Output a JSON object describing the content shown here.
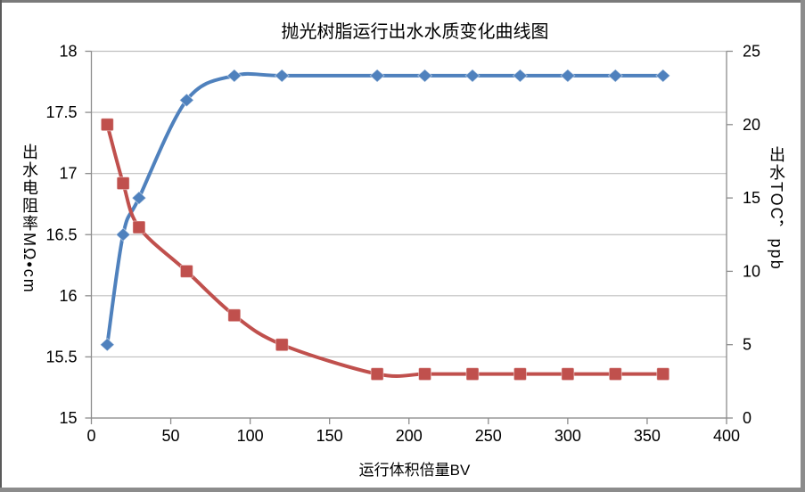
{
  "chart_data": {
    "type": "line",
    "title": "抛光树脂运行出水水质变化曲线图",
    "x": [
      10,
      20,
      30,
      60,
      90,
      120,
      180,
      210,
      240,
      270,
      300,
      330,
      360
    ],
    "series": [
      {
        "name": "出水电阻率",
        "axis": "left",
        "color": "#4F81BD",
        "marker": "diamond",
        "values": [
          15.6,
          16.5,
          16.8,
          17.6,
          17.8,
          17.8,
          17.8,
          17.8,
          17.8,
          17.8,
          17.8,
          17.8,
          17.8
        ]
      },
      {
        "name": "出水TOC",
        "axis": "right",
        "color": "#C0504D",
        "marker": "square",
        "values": [
          20,
          16,
          13,
          10,
          7,
          5,
          3,
          3,
          3,
          3,
          3,
          3,
          3
        ]
      }
    ],
    "x_axis": {
      "label": "运行体积倍量BV",
      "min": 0,
      "max": 400,
      "ticks": [
        0,
        50,
        100,
        150,
        200,
        250,
        300,
        350,
        400
      ],
      "tick_labels": [
        "0",
        "50",
        "100",
        "150",
        "200",
        "250",
        "300",
        "350",
        "400"
      ]
    },
    "left_axis": {
      "label": "出水电阻率MΩ•cm",
      "min": 15,
      "max": 18,
      "ticks": [
        15,
        15.5,
        16,
        16.5,
        17,
        17.5,
        18
      ],
      "tick_labels": [
        "15",
        "15.5",
        "16",
        "16.5",
        "17",
        "17.5",
        "18"
      ]
    },
    "right_axis": {
      "label": "出水TOC，ppb",
      "min": 0,
      "max": 25,
      "ticks": [
        0,
        5,
        10,
        15,
        20,
        25
      ],
      "tick_labels": [
        "0",
        "5",
        "10",
        "15",
        "20",
        "25"
      ]
    },
    "grid": "horizontal",
    "legend": "none",
    "smooth_lines": true,
    "colors": {
      "grid": "#BFBFBF",
      "axis": "#8C8C8C",
      "text": "#000000",
      "background": "#FFFFFF",
      "frame": "#8C8C8C"
    }
  }
}
